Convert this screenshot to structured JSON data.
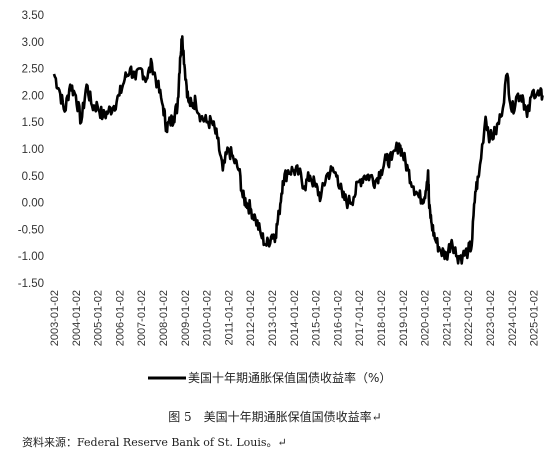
{
  "caption": "图 5　美国十年期通胀保值国债收益率↵",
  "source": "资料来源：Federal Reserve Bank of St. Louis。↵",
  "chart_data": {
    "type": "line",
    "title": "",
    "xlabel": "",
    "ylabel": "",
    "ylim": [
      -1.5,
      3.5
    ],
    "yticks": [
      "3.50",
      "3.00",
      "2.50",
      "2.00",
      "1.50",
      "1.00",
      "0.50",
      "0.00",
      "-0.50",
      "-1.00",
      "-1.50"
    ],
    "yticks_values": [
      3.5,
      3.0,
      2.5,
      2.0,
      1.5,
      1.0,
      0.5,
      0.0,
      -0.5,
      -1.0,
      -1.5
    ],
    "xticks": [
      "2003-01-02",
      "2004-01-02",
      "2005-01-02",
      "2006-01-02",
      "2007-01-02",
      "2008-01-02",
      "2009-01-02",
      "2010-01-02",
      "2011-01-02",
      "2012-01-02",
      "2013-01-02",
      "2014-01-02",
      "2015-01-02",
      "2016-01-02",
      "2017-01-02",
      "2018-01-02",
      "2019-01-02",
      "2020-01-02",
      "2021-01-02",
      "2022-01-02",
      "2023-01-02",
      "2024-01-02",
      "2025-01-02"
    ],
    "grid": false,
    "legend_position": "bottom",
    "series": [
      {
        "name": "美国十年期通胀保值国债收益率（%）",
        "color": "#000000",
        "x": [
          "2003-01-02",
          "2003-04-01",
          "2003-07-01",
          "2003-10-01",
          "2004-01-02",
          "2004-04-01",
          "2004-07-01",
          "2004-10-01",
          "2005-01-02",
          "2005-04-01",
          "2005-07-01",
          "2005-10-01",
          "2006-01-02",
          "2006-04-01",
          "2006-07-01",
          "2006-10-01",
          "2007-01-02",
          "2007-04-01",
          "2007-07-01",
          "2007-10-01",
          "2008-01-02",
          "2008-03-01",
          "2008-05-01",
          "2008-07-01",
          "2008-09-01",
          "2008-10-15",
          "2008-11-20",
          "2009-01-02",
          "2009-03-01",
          "2009-05-01",
          "2009-07-01",
          "2009-10-01",
          "2010-01-02",
          "2010-04-01",
          "2010-07-01",
          "2010-10-01",
          "2011-01-02",
          "2011-04-01",
          "2011-07-01",
          "2011-09-01",
          "2011-11-01",
          "2012-01-02",
          "2012-04-01",
          "2012-07-01",
          "2012-10-01",
          "2013-01-02",
          "2013-03-01",
          "2013-05-01",
          "2013-07-01",
          "2013-10-01",
          "2014-01-02",
          "2014-04-01",
          "2014-07-01",
          "2014-10-01",
          "2015-01-02",
          "2015-04-01",
          "2015-07-01",
          "2015-10-01",
          "2016-01-02",
          "2016-04-01",
          "2016-07-01",
          "2016-10-01",
          "2017-01-02",
          "2017-04-01",
          "2017-07-01",
          "2017-10-01",
          "2018-01-02",
          "2018-04-01",
          "2018-07-01",
          "2018-11-01",
          "2019-01-02",
          "2019-04-01",
          "2019-07-01",
          "2019-10-01",
          "2020-01-02",
          "2020-03-01",
          "2020-03-20",
          "2020-05-01",
          "2020-07-01",
          "2020-10-01",
          "2021-01-02",
          "2021-04-01",
          "2021-07-01",
          "2021-10-01",
          "2022-01-02",
          "2022-03-01",
          "2022-05-01",
          "2022-07-01",
          "2022-10-20",
          "2023-01-02",
          "2023-04-01",
          "2023-07-01",
          "2023-10-20",
          "2024-01-02",
          "2024-04-01",
          "2024-07-01",
          "2024-09-15",
          "2025-01-02",
          "2025-04-01",
          "2025-06-01"
        ],
        "y": [
          2.4,
          2.1,
          1.7,
          2.2,
          2.0,
          1.5,
          2.2,
          1.8,
          1.8,
          1.6,
          1.7,
          1.8,
          2.0,
          2.3,
          2.5,
          2.3,
          2.5,
          2.3,
          2.6,
          2.2,
          1.8,
          1.4,
          1.5,
          1.6,
          1.8,
          2.7,
          3.1,
          2.5,
          1.9,
          1.8,
          1.9,
          1.6,
          1.5,
          1.5,
          1.2,
          0.6,
          1.0,
          0.8,
          0.6,
          0.1,
          0.0,
          -0.1,
          -0.3,
          -0.6,
          -0.8,
          -0.6,
          -0.6,
          -0.2,
          0.4,
          0.6,
          0.6,
          0.55,
          0.3,
          0.5,
          0.3,
          0.1,
          0.5,
          0.6,
          0.5,
          0.1,
          0.0,
          0.1,
          0.4,
          0.5,
          0.5,
          0.4,
          0.6,
          0.8,
          0.8,
          1.1,
          0.9,
          0.6,
          0.3,
          0.1,
          0.1,
          0.6,
          -0.1,
          -0.4,
          -0.7,
          -0.9,
          -1.0,
          -0.7,
          -1.0,
          -1.0,
          -0.9,
          -0.8,
          0.2,
          0.5,
          1.6,
          1.2,
          1.3,
          1.6,
          2.4,
          1.7,
          2.0,
          2.0,
          1.6,
          2.1,
          2.0,
          2.0
        ]
      }
    ]
  }
}
